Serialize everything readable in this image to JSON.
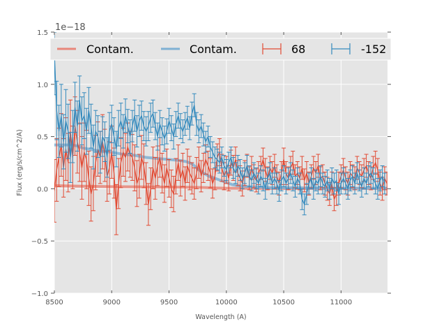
{
  "chart_data": {
    "type": "line",
    "title": "",
    "xlabel": "Wavelength (A)",
    "ylabel": "Flux (erg/s/cm^2/A)",
    "y_offset_label": "1e−18",
    "xlim": [
      8500,
      11405
    ],
    "ylim": [
      -1.0,
      1.5
    ],
    "y_scale_factor": 1e-18,
    "x_ticks": [
      8500,
      9000,
      9500,
      10000,
      10500,
      11000
    ],
    "x_tick_labels": [
      "8500",
      "9000",
      "9500",
      "10000",
      "10500",
      "11000"
    ],
    "y_ticks": [
      -1.0,
      -0.5,
      0.0,
      0.5,
      1.0,
      1.5
    ],
    "y_tick_labels": [
      "−1.0",
      "−0.5",
      "0.0",
      "0.5",
      "1.0",
      "1.5"
    ],
    "grid": true,
    "background": "#e5e5e5",
    "legend": {
      "placement": "top",
      "ncol": 4,
      "entries": [
        {
          "label": "Contam.",
          "type": "line",
          "color": "#e8877a"
        },
        {
          "label": "Contam.",
          "type": "line",
          "color": "#7fb0d3"
        },
        {
          "label": "68",
          "type": "errorbar",
          "color": "#e24a33"
        },
        {
          "label": "-152",
          "type": "errorbar",
          "color": "#348abd"
        }
      ]
    },
    "contamination": [
      {
        "name": "Contam. (68)",
        "color": "#e8877a",
        "x": [
          8500,
          8700,
          9000,
          9300,
          9600,
          9800,
          9900,
          10000,
          10200,
          10500,
          10800,
          11100,
          11405
        ],
        "y": [
          0.03,
          0.025,
          0.02,
          0.018,
          0.015,
          0.012,
          0.008,
          0.005,
          0.004,
          0.003,
          0.003,
          0.003,
          0.003
        ]
      },
      {
        "name": "Contam. (-152)",
        "color": "#7fb0d3",
        "x": [
          8500,
          8550,
          8600,
          8650,
          8700,
          8750,
          8800,
          8850,
          8900,
          9000,
          9100,
          9200,
          9300,
          9400,
          9500,
          9600,
          9650,
          9700,
          9750,
          9800,
          9850,
          9900,
          9950,
          10000,
          10050,
          10100,
          10200,
          10400,
          10600,
          10800,
          11000,
          11200,
          11405
        ],
        "y": [
          0.42,
          0.42,
          0.42,
          0.42,
          0.41,
          0.39,
          0.38,
          0.37,
          0.36,
          0.35,
          0.33,
          0.32,
          0.3,
          0.29,
          0.28,
          0.27,
          0.26,
          0.24,
          0.19,
          0.15,
          0.12,
          0.1,
          0.08,
          0.06,
          0.04,
          0.03,
          0.02,
          0.01,
          0.01,
          0.005,
          0.005,
          0.005,
          0.005
        ]
      }
    ],
    "series": [
      {
        "name": "68",
        "color": "#e24a33",
        "x_start": 8500,
        "x_step": 20,
        "values": [
          -0.02,
          0.18,
          0.3,
          0.42,
          0.2,
          0.38,
          0.25,
          0.55,
          0.3,
          0.6,
          0.45,
          0.35,
          0.2,
          0.35,
          0.28,
          0.1,
          -0.05,
          0.05,
          0.25,
          0.38,
          0.3,
          0.45,
          0.32,
          0.12,
          0.2,
          0.35,
          0.15,
          -0.2,
          0.05,
          0.25,
          0.35,
          0.3,
          0.4,
          0.33,
          0.3,
          0.2,
          0.05,
          0.12,
          0.3,
          0.22,
          0.05,
          -0.15,
          0.0,
          0.2,
          0.1,
          0.22,
          0.3,
          0.15,
          0.05,
          0.2,
          0.1,
          0.0,
          -0.05,
          0.12,
          0.25,
          0.1,
          0.18,
          0.05,
          0.22,
          0.15,
          0.1,
          0.05,
          0.15,
          0.25,
          0.12,
          0.2,
          0.28,
          0.22,
          0.15,
          0.05,
          0.12,
          0.3,
          0.35,
          0.2,
          0.12,
          0.18,
          0.1,
          0.25,
          0.2,
          0.28,
          0.15,
          0.1,
          0.05,
          0.15,
          0.22,
          0.1,
          0.2,
          0.12,
          0.08,
          0.15,
          0.2,
          0.28,
          0.18,
          0.1,
          0.2,
          0.15,
          0.22,
          0.12,
          0.05,
          0.15,
          0.28,
          0.15,
          0.1,
          0.2,
          0.25,
          0.12,
          0.15,
          0.1,
          0.2,
          0.08,
          0.15,
          0.05,
          0.12,
          0.2,
          0.15,
          0.22,
          0.1,
          0.12,
          0.05,
          0.0,
          -0.05,
          0.05,
          -0.1,
          -0.05,
          0.05,
          0.12,
          0.18,
          0.1,
          0.05,
          0.15,
          0.12,
          0.1,
          0.2,
          0.15,
          0.12,
          0.18,
          0.22,
          0.15,
          0.1,
          0.2,
          0.25,
          0.18,
          0.05,
          0.0,
          0.1,
          0.05,
          0.0
        ],
        "errors": [
          0.3,
          0.3,
          0.28,
          0.3,
          0.28,
          0.3,
          0.28,
          0.3,
          0.3,
          0.28,
          0.3,
          0.28,
          0.3,
          0.28,
          0.28,
          0.26,
          0.26,
          0.26,
          0.26,
          0.26,
          0.25,
          0.26,
          0.25,
          0.24,
          0.25,
          0.25,
          0.24,
          0.24,
          0.24,
          0.24,
          0.23,
          0.23,
          0.23,
          0.22,
          0.22,
          0.22,
          0.22,
          0.21,
          0.21,
          0.21,
          0.2,
          0.2,
          0.2,
          0.2,
          0.2,
          0.19,
          0.19,
          0.19,
          0.18,
          0.18,
          0.18,
          0.18,
          0.17,
          0.17,
          0.17,
          0.17,
          0.16,
          0.16,
          0.16,
          0.16,
          0.15,
          0.15,
          0.15,
          0.15,
          0.15,
          0.14,
          0.14,
          0.14,
          0.14,
          0.14,
          0.13,
          0.13,
          0.13,
          0.13,
          0.13,
          0.13,
          0.12,
          0.12,
          0.12,
          0.12,
          0.12,
          0.12,
          0.12,
          0.12,
          0.11,
          0.11,
          0.11,
          0.11,
          0.11,
          0.11,
          0.11,
          0.11,
          0.11,
          0.11,
          0.11,
          0.11,
          0.11,
          0.11,
          0.11,
          0.11,
          0.11,
          0.11,
          0.11,
          0.11,
          0.11,
          0.11,
          0.11,
          0.11,
          0.11,
          0.11,
          0.11,
          0.11,
          0.11,
          0.11,
          0.11,
          0.11,
          0.11,
          0.11,
          0.11,
          0.11,
          0.11,
          0.11,
          0.11,
          0.11,
          0.11,
          0.11,
          0.11,
          0.11,
          0.11,
          0.11,
          0.11,
          0.11,
          0.11,
          0.11,
          0.11,
          0.11,
          0.11,
          0.11,
          0.11,
          0.11,
          0.11,
          0.11,
          0.11,
          0.11,
          0.11,
          0.11,
          0.11
        ]
      },
      {
        "name": "-152",
        "color": "#348abd",
        "x_start": 8500,
        "x_step": 20,
        "values": [
          1.3,
          0.75,
          0.55,
          0.7,
          0.45,
          0.65,
          0.55,
          0.3,
          0.5,
          0.78,
          0.6,
          0.85,
          0.65,
          0.7,
          0.55,
          0.75,
          0.6,
          0.4,
          0.55,
          0.5,
          0.35,
          0.5,
          0.45,
          0.3,
          0.55,
          0.62,
          0.5,
          0.38,
          0.58,
          0.65,
          0.55,
          0.7,
          0.6,
          0.5,
          0.6,
          0.7,
          0.55,
          0.65,
          0.7,
          0.6,
          0.55,
          0.6,
          0.68,
          0.72,
          0.6,
          0.5,
          0.62,
          0.55,
          0.48,
          0.55,
          0.65,
          0.58,
          0.5,
          0.62,
          0.7,
          0.6,
          0.55,
          0.62,
          0.68,
          0.58,
          0.72,
          0.8,
          0.62,
          0.55,
          0.6,
          0.52,
          0.45,
          0.5,
          0.4,
          0.35,
          0.3,
          0.28,
          0.25,
          0.3,
          0.22,
          0.18,
          0.25,
          0.3,
          0.2,
          0.15,
          0.22,
          0.18,
          0.1,
          0.15,
          0.22,
          0.12,
          0.08,
          0.15,
          0.1,
          0.05,
          0.12,
          0.08,
          0.0,
          0.1,
          0.15,
          0.05,
          0.1,
          0.05,
          -0.02,
          0.08,
          0.12,
          0.05,
          0.1,
          0.15,
          0.08,
          0.02,
          0.1,
          0.05,
          -0.1,
          -0.15,
          -0.05,
          0.05,
          0.1,
          0.0,
          0.08,
          0.05,
          0.12,
          0.05,
          0.02,
          0.08,
          0.0,
          0.1,
          0.05,
          0.08,
          -0.05,
          0.05,
          0.1,
          0.05,
          0.0,
          0.08,
          0.12,
          0.05,
          0.15,
          0.08,
          0.02,
          0.1,
          0.05,
          0.12,
          0.15,
          0.1,
          0.05,
          0.0,
          0.08,
          0.12,
          0.05
        ],
        "errors": [
          0.4,
          0.28,
          0.25,
          0.3,
          0.26,
          0.3,
          0.26,
          0.24,
          0.25,
          0.24,
          0.24,
          0.23,
          0.23,
          0.22,
          0.22,
          0.22,
          0.21,
          0.21,
          0.2,
          0.2,
          0.2,
          0.19,
          0.19,
          0.19,
          0.18,
          0.18,
          0.18,
          0.17,
          0.17,
          0.17,
          0.16,
          0.16,
          0.16,
          0.16,
          0.15,
          0.15,
          0.15,
          0.15,
          0.14,
          0.14,
          0.14,
          0.14,
          0.14,
          0.13,
          0.13,
          0.13,
          0.13,
          0.13,
          0.12,
          0.12,
          0.12,
          0.12,
          0.12,
          0.12,
          0.12,
          0.12,
          0.11,
          0.11,
          0.11,
          0.11,
          0.11,
          0.11,
          0.11,
          0.11,
          0.11,
          0.11,
          0.1,
          0.1,
          0.1,
          0.1,
          0.1,
          0.1,
          0.1,
          0.1,
          0.1,
          0.1,
          0.1,
          0.1,
          0.1,
          0.1,
          0.1,
          0.1,
          0.1,
          0.1,
          0.1,
          0.1,
          0.1,
          0.1,
          0.1,
          0.1,
          0.1,
          0.1,
          0.1,
          0.1,
          0.1,
          0.1,
          0.1,
          0.1,
          0.1,
          0.1,
          0.1,
          0.1,
          0.1,
          0.1,
          0.1,
          0.1,
          0.1,
          0.1,
          0.1,
          0.1,
          0.1,
          0.1,
          0.1,
          0.1,
          0.1,
          0.1,
          0.1,
          0.1,
          0.1,
          0.1,
          0.1,
          0.1,
          0.1,
          0.1,
          0.1,
          0.1,
          0.1,
          0.1,
          0.1,
          0.1,
          0.1,
          0.1,
          0.1,
          0.1,
          0.1,
          0.1,
          0.1,
          0.1,
          0.1,
          0.1,
          0.1,
          0.1,
          0.1,
          0.1,
          0.1,
          0.1
        ]
      }
    ]
  }
}
